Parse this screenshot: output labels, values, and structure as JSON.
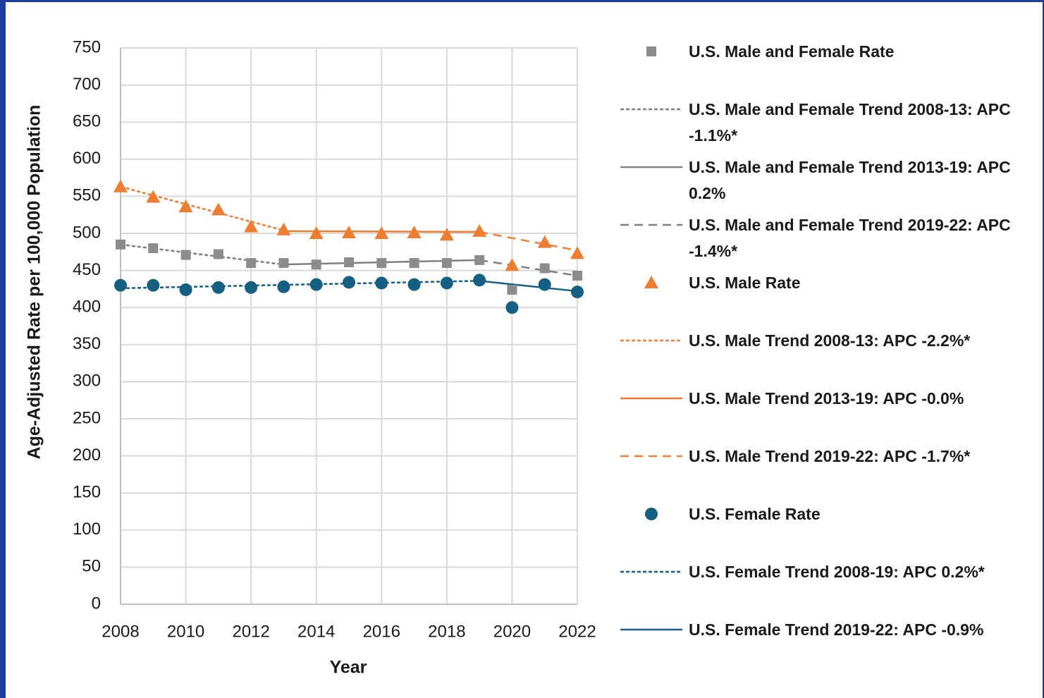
{
  "chart_data": {
    "type": "line",
    "y_label": "Age-Adjusted Rate per 100,000 Population",
    "x_label": "Year",
    "x": [
      2008,
      2009,
      2010,
      2011,
      2012,
      2013,
      2014,
      2015,
      2016,
      2017,
      2018,
      2019,
      2020,
      2021,
      2022
    ],
    "xlim": [
      2008,
      2022
    ],
    "xticks": [
      2008,
      2010,
      2012,
      2014,
      2016,
      2018,
      2020,
      2022
    ],
    "ylim": [
      0,
      750
    ],
    "yticks": [
      0,
      50,
      100,
      150,
      200,
      250,
      300,
      350,
      400,
      450,
      500,
      550,
      600,
      650,
      700,
      750
    ],
    "grid": true,
    "legend": "right",
    "series": [
      {
        "name": "U.S. Male and Female Rate",
        "color": "#8c8c8c",
        "marker": "square",
        "values": [
          485,
          480,
          471,
          472,
          460,
          460,
          458,
          461,
          460,
          460,
          460,
          464,
          424,
          453,
          443
        ]
      },
      {
        "name": "U.S. Male and Female Trend 2008-13: APC -1.1%*",
        "color": "#7f7f7f",
        "dash": "dotted",
        "x": [
          2008,
          2013
        ],
        "values": [
          485,
          458
        ]
      },
      {
        "name": "U.S. Male and Female Trend 2013-19: APC 0.2%",
        "color": "#7f7f7f",
        "dash": "solid",
        "x": [
          2013,
          2019
        ],
        "values": [
          458,
          464
        ]
      },
      {
        "name": "U.S. Male and Female Trend 2019-22: APC -1.4%*",
        "color": "#7f7f7f",
        "dash": "dashed",
        "x": [
          2019,
          2022
        ],
        "values": [
          464,
          443
        ]
      },
      {
        "name": "U.S. Male Rate",
        "color": "#ed7d31",
        "marker": "triangle",
        "values": [
          563,
          549,
          536,
          532,
          509,
          505,
          500,
          501,
          500,
          501,
          498,
          503,
          457,
          488,
          473
        ]
      },
      {
        "name": "U.S. Male Trend 2008-13: APC -2.2%*",
        "color": "#ed7d31",
        "dash": "dotted",
        "x": [
          2008,
          2013
        ],
        "values": [
          563,
          504
        ]
      },
      {
        "name": "U.S. Male Trend 2013-19: APC -0.0%",
        "color": "#ed7d31",
        "dash": "solid",
        "x": [
          2013,
          2019
        ],
        "values": [
          503,
          502
        ]
      },
      {
        "name": "U.S. Male Trend 2019-22: APC -1.7%*",
        "color": "#ed7d31",
        "dash": "dashed",
        "x": [
          2019,
          2022
        ],
        "values": [
          502,
          477
        ]
      },
      {
        "name": "U.S. Female Rate",
        "color": "#156082",
        "marker": "circle",
        "values": [
          430,
          430,
          424,
          427,
          427,
          428,
          431,
          434,
          433,
          431,
          433,
          437,
          400,
          431,
          421
        ]
      },
      {
        "name": "U.S. Female Trend 2008-19: APC 0.2%*",
        "color": "#156082",
        "dash": "dotted",
        "x": [
          2008,
          2019
        ],
        "values": [
          426,
          436
        ]
      },
      {
        "name": "U.S. Female Trend 2019-22: APC -0.9%",
        "color": "#156082",
        "dash": "solid",
        "x": [
          2019,
          2022
        ],
        "values": [
          436,
          422
        ]
      }
    ]
  }
}
